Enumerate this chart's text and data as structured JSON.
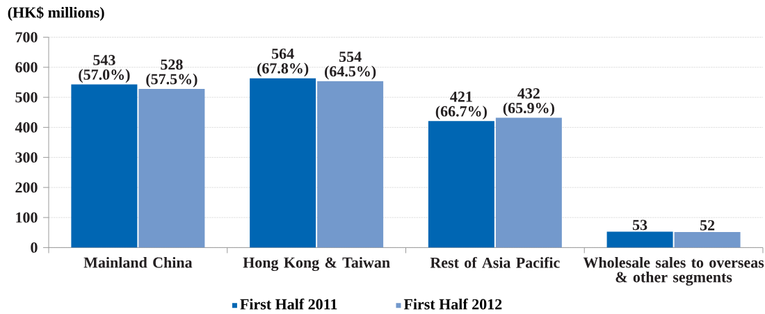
{
  "chart_data": {
    "type": "bar",
    "ylabel": "(HK$ millions)",
    "categories": [
      "Mainland China",
      "Hong Kong & Taiwan",
      "Rest of Asia Pacific",
      "Wholesale sales to overseas & other segments"
    ],
    "series": [
      {
        "name": "First Half 2011",
        "color": "#0066b3",
        "values": [
          543,
          564,
          421,
          53
        ],
        "value_labels": [
          "543 (57.0%)",
          "564 (67.8%)",
          "421 (66.7%)",
          "53"
        ]
      },
      {
        "name": "First Half 2012",
        "color": "#7399cc",
        "values": [
          528,
          554,
          432,
          52
        ],
        "value_labels": [
          "528 (57.5%)",
          "554 (64.5%)",
          "432 (65.9%)",
          "52"
        ]
      }
    ],
    "ylim": [
      0,
      700
    ],
    "yticks": [
      0,
      100,
      200,
      300,
      400,
      500,
      600,
      700
    ],
    "grid": "y",
    "legend": "bottom"
  }
}
